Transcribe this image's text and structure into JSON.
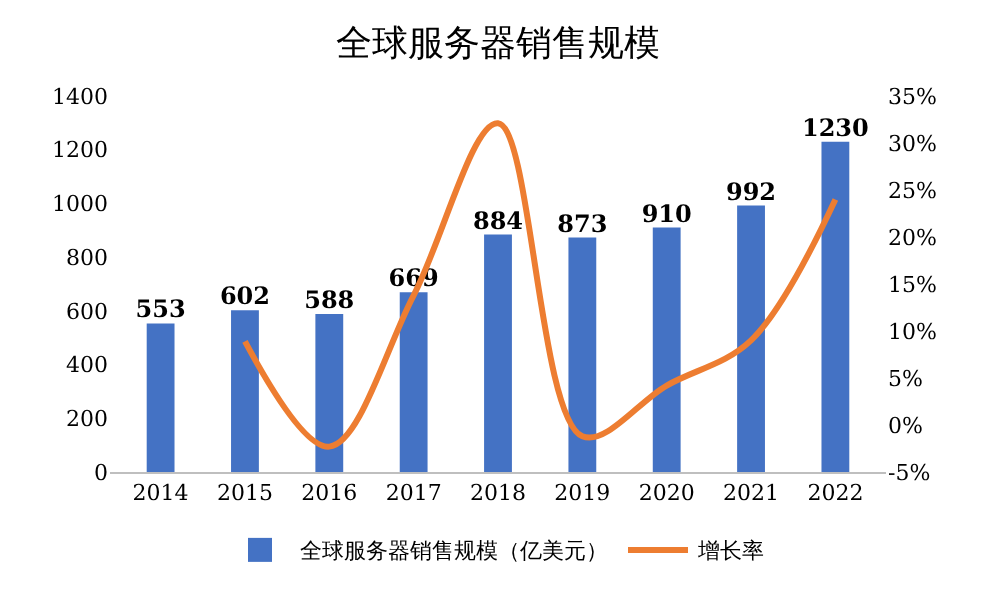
{
  "chart_data": {
    "type": "bar",
    "title": "全球服务器销售规模",
    "categories": [
      "2014",
      "2015",
      "2016",
      "2017",
      "2018",
      "2019",
      "2020",
      "2021",
      "2022"
    ],
    "series": [
      {
        "name": "全球服务器销售规模（亿美元）",
        "color": "#4472c4",
        "values": [
          553,
          602,
          588,
          669,
          884,
          873,
          910,
          992,
          1230
        ],
        "value_labels": [
          "553",
          "602",
          "588",
          "669",
          "884",
          "873",
          "910",
          "992",
          "1230"
        ]
      },
      {
        "name": "增长率",
        "type": "line",
        "axis": "y2",
        "color": "#ed7d31",
        "values": [
          null,
          8.9,
          -2.3,
          13.8,
          32.1,
          -1.2,
          4.2,
          9.0,
          24.0
        ]
      }
    ],
    "ylim": [
      0,
      1400
    ],
    "yticks": [
      0,
      200,
      400,
      600,
      800,
      1000,
      1200,
      1400
    ],
    "y2lim": [
      -5,
      35
    ],
    "y2ticks": [
      {
        "value": -5,
        "label": "-5%"
      },
      {
        "value": 0,
        "label": "0%"
      },
      {
        "value": 5,
        "label": "5%"
      },
      {
        "value": 10,
        "label": "10%"
      },
      {
        "value": 15,
        "label": "15%"
      },
      {
        "value": 20,
        "label": "20%"
      },
      {
        "value": 25,
        "label": "25%"
      },
      {
        "value": 30,
        "label": "30%"
      },
      {
        "value": 35,
        "label": "35%"
      }
    ],
    "grid": false,
    "legend": "bottom",
    "marker": "none",
    "line_style": "solid"
  }
}
